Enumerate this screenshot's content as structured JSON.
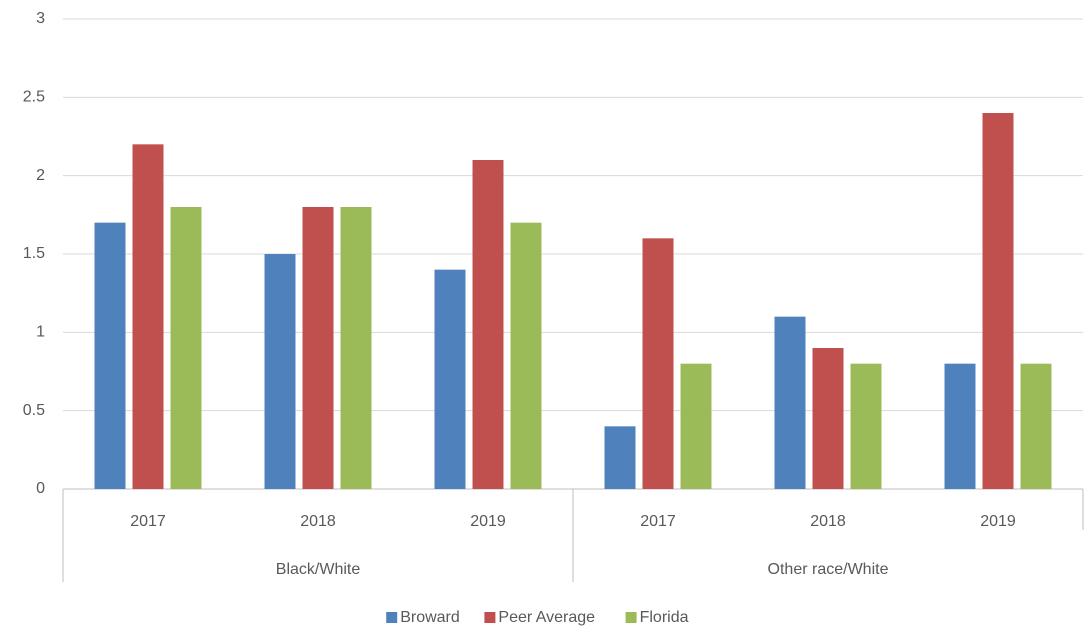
{
  "chart_data": {
    "type": "bar",
    "category_groups": [
      {
        "name": "Black/White",
        "categories": [
          "2017",
          "2018",
          "2019"
        ]
      },
      {
        "name": "Other race/White",
        "categories": [
          "2017",
          "2018",
          "2019"
        ]
      }
    ],
    "series": [
      {
        "name": "Broward",
        "color": "#4f81bd",
        "values": [
          1.7,
          1.5,
          1.4,
          0.4,
          1.1,
          0.8
        ]
      },
      {
        "name": "Peer Average",
        "color": "#c0504d",
        "values": [
          2.2,
          1.8,
          2.1,
          1.6,
          0.9,
          2.4
        ]
      },
      {
        "name": "Florida",
        "color": "#9bbb59",
        "values": [
          1.8,
          1.8,
          1.7,
          0.8,
          0.8,
          0.8
        ]
      }
    ],
    "ylim": [
      0,
      3
    ],
    "yticks": [
      0,
      0.5,
      1,
      1.5,
      2,
      2.5,
      3
    ],
    "grid": true,
    "legend": "bottom"
  }
}
